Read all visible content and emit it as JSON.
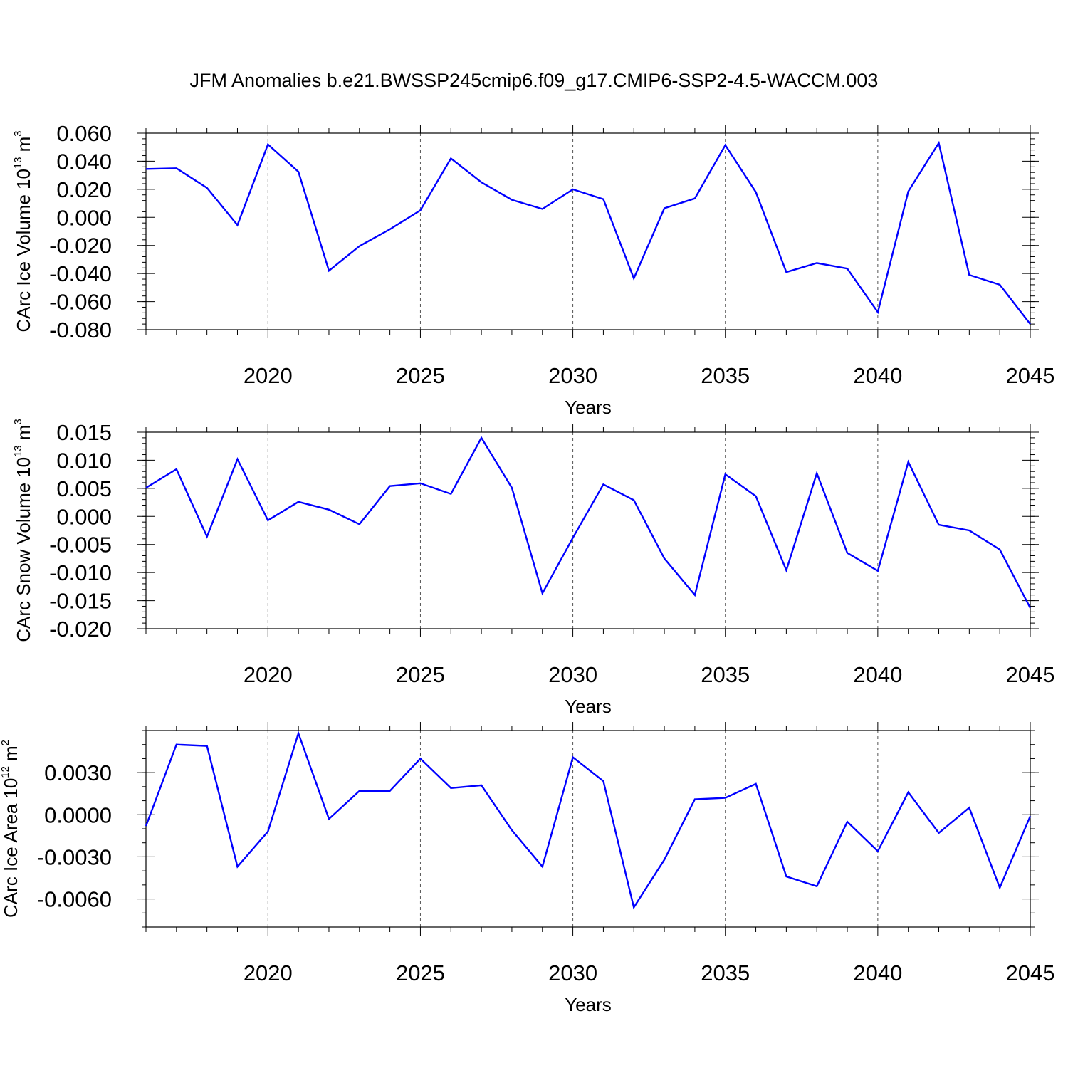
{
  "title": "JFM Anomalies b.e21.BWSSP245cmip6.f09_g17.CMIP6-SSP2-4.5-WACCM.003",
  "colors": {
    "line": "#0000ff",
    "axis": "#000000",
    "grid": "#555555"
  },
  "chart_data": [
    {
      "type": "line",
      "ylabel": "CArc Ice Volume",
      "yunit_base": "10",
      "yunit_exp": "13",
      "yunit_rest": "m",
      "yunit_power": "3",
      "xlabel": "Years",
      "xlim": [
        2016,
        2045
      ],
      "ylim": [
        -0.08,
        0.06
      ],
      "x_ticks": [
        "2020",
        "2025",
        "2030",
        "2035",
        "2040",
        "2045"
      ],
      "x_tick_values": [
        2020,
        2025,
        2030,
        2035,
        2040,
        2045
      ],
      "y_ticks": [
        "0.060",
        "0.040",
        "0.020",
        "0.000",
        "-0.020",
        "-0.040",
        "-0.060",
        "-0.080"
      ],
      "y_tick_values": [
        0.06,
        0.04,
        0.02,
        0.0,
        -0.02,
        -0.04,
        -0.06,
        -0.08
      ],
      "y_minor_step": 0.004,
      "grid": "dashed vertical at major x ticks",
      "x": [
        2016,
        2017,
        2018,
        2019,
        2020,
        2021,
        2022,
        2023,
        2024,
        2025,
        2026,
        2027,
        2028,
        2029,
        2030,
        2031,
        2032,
        2033,
        2034,
        2035,
        2036,
        2037,
        2038,
        2039,
        2040,
        2041,
        2042,
        2043,
        2044,
        2045
      ],
      "values": [
        0.0345,
        0.035,
        0.021,
        -0.0055,
        0.052,
        0.0325,
        -0.038,
        -0.0205,
        -0.0085,
        0.005,
        0.042,
        0.025,
        0.0125,
        0.006,
        0.02,
        0.013,
        -0.0435,
        0.0065,
        0.0135,
        0.0515,
        0.018,
        -0.039,
        -0.0325,
        -0.0365,
        -0.0675,
        0.0185,
        0.053,
        -0.041,
        -0.048,
        -0.076
      ]
    },
    {
      "type": "line",
      "ylabel": "CArc Snow Volume",
      "yunit_base": "10",
      "yunit_exp": "13",
      "yunit_rest": "m",
      "yunit_power": "3",
      "xlabel": "Years",
      "xlim": [
        2016,
        2045
      ],
      "ylim": [
        -0.02,
        0.015
      ],
      "x_ticks": [
        "2020",
        "2025",
        "2030",
        "2035",
        "2040",
        "2045"
      ],
      "x_tick_values": [
        2020,
        2025,
        2030,
        2035,
        2040,
        2045
      ],
      "y_ticks": [
        "0.015",
        "0.010",
        "0.005",
        "0.000",
        "-0.005",
        "-0.010",
        "-0.015",
        "-0.020"
      ],
      "y_tick_values": [
        0.015,
        0.01,
        0.005,
        0.0,
        -0.005,
        -0.01,
        -0.015,
        -0.02
      ],
      "y_minor_step": 0.001,
      "grid": "dashed vertical at major x ticks",
      "x": [
        2016,
        2017,
        2018,
        2019,
        2020,
        2021,
        2022,
        2023,
        2024,
        2025,
        2026,
        2027,
        2028,
        2029,
        2030,
        2031,
        2032,
        2033,
        2034,
        2035,
        2036,
        2037,
        2038,
        2039,
        2040,
        2041,
        2042,
        2043,
        2044,
        2045
      ],
      "values": [
        0.0051,
        0.0084,
        -0.0036,
        0.0102,
        -0.0007,
        0.0026,
        0.0012,
        -0.0014,
        0.0054,
        0.0059,
        0.004,
        0.014,
        0.0051,
        -0.0137,
        -0.0038,
        0.0057,
        0.0029,
        -0.0075,
        -0.014,
        0.0075,
        0.0036,
        -0.0096,
        0.0077,
        -0.0065,
        -0.0097,
        0.0097,
        -0.0015,
        -0.0025,
        -0.0059,
        -0.0163
      ]
    },
    {
      "type": "line",
      "ylabel": "CArc Ice Area",
      "yunit_base": "10",
      "yunit_exp": "12",
      "yunit_rest": "m",
      "yunit_power": "2",
      "xlabel": "Years",
      "xlim": [
        2016,
        2045
      ],
      "ylim": [
        -0.008,
        0.006
      ],
      "x_ticks": [
        "2020",
        "2025",
        "2030",
        "2035",
        "2040",
        "2045"
      ],
      "x_tick_values": [
        2020,
        2025,
        2030,
        2035,
        2040,
        2045
      ],
      "y_ticks": [
        "0.0030",
        "0.0000",
        "-0.0030",
        "-0.0060"
      ],
      "y_tick_values": [
        0.003,
        0.0,
        -0.003,
        -0.006
      ],
      "y_minor_step": 0.001,
      "grid": "dashed vertical at major x ticks",
      "x": [
        2016,
        2017,
        2018,
        2019,
        2020,
        2021,
        2022,
        2023,
        2024,
        2025,
        2026,
        2027,
        2028,
        2029,
        2030,
        2031,
        2032,
        2033,
        2034,
        2035,
        2036,
        2037,
        2038,
        2039,
        2040,
        2041,
        2042,
        2043,
        2044,
        2045
      ],
      "values": [
        -0.0008,
        0.005,
        0.0049,
        -0.0037,
        -0.0012,
        0.0058,
        -0.0003,
        0.0017,
        0.0017,
        0.004,
        0.0019,
        0.0021,
        -0.0011,
        -0.0037,
        0.0041,
        0.0024,
        -0.0066,
        -0.0032,
        0.0011,
        0.0012,
        0.0022,
        -0.0044,
        -0.0051,
        -0.0005,
        -0.0026,
        0.0016,
        -0.0013,
        0.0005,
        -0.0052,
        -0.0001
      ]
    }
  ]
}
